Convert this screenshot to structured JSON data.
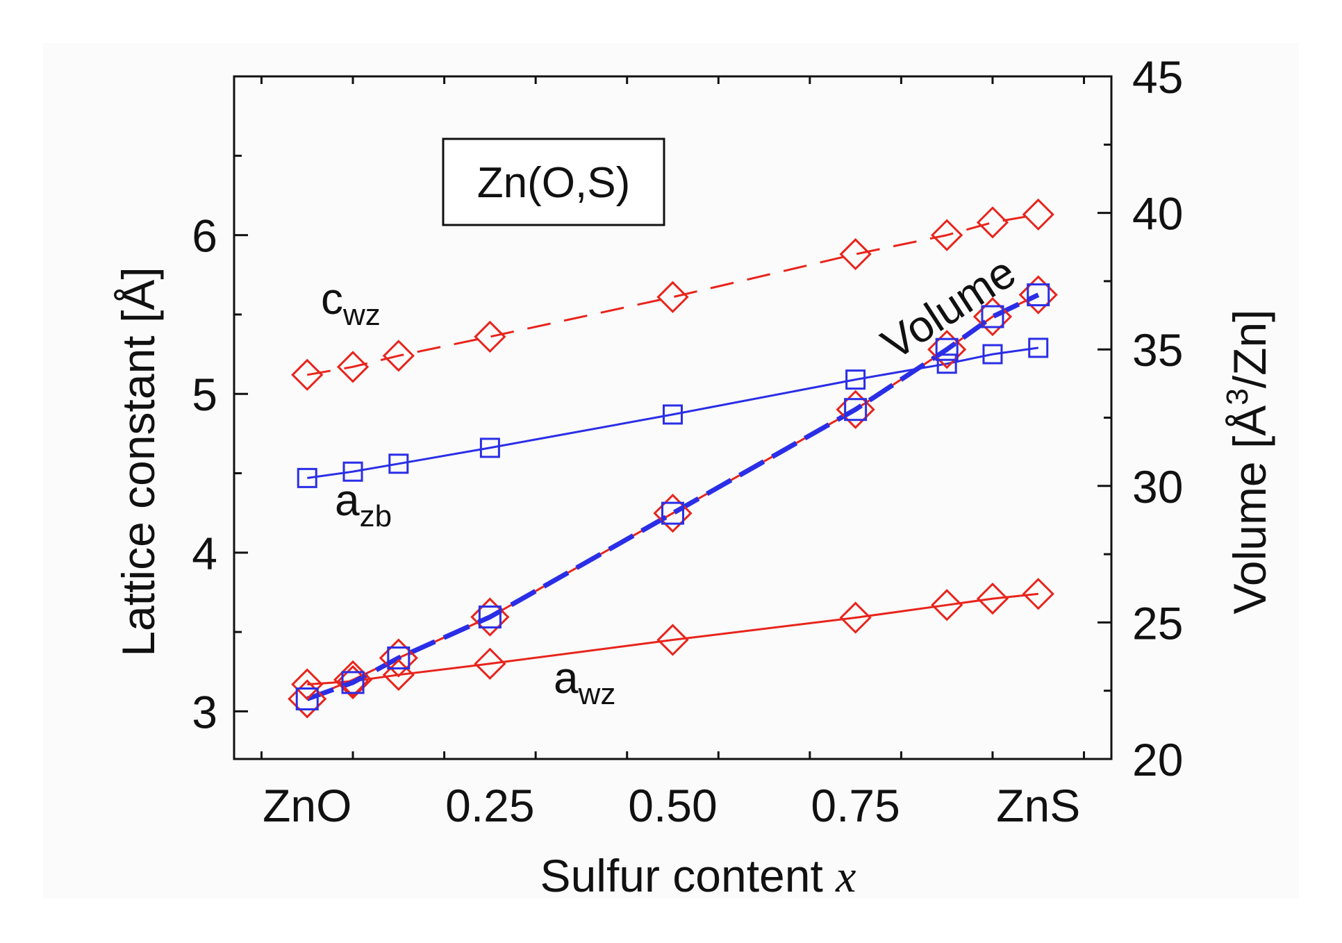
{
  "chart_data": {
    "type": "line",
    "title": "Zn(O,S)",
    "xlabel": "Sulfur content",
    "xlabel_var": "x",
    "ylabel": "Lattice constant [Å]",
    "y2label_prefix": "Volume [Å",
    "y2label_sup": "3",
    "y2label_suffix": "/Zn]",
    "xlim": [
      -0.1,
      1.1
    ],
    "ylim": [
      2.7,
      7.0
    ],
    "y2lim": [
      20,
      45
    ],
    "x_ticks": [
      {
        "value": 0,
        "label": "ZnO"
      },
      {
        "value": 0.25,
        "label": "0.25"
      },
      {
        "value": 0.5,
        "label": "0.50"
      },
      {
        "value": 0.75,
        "label": "0.75"
      },
      {
        "value": 1,
        "label": "ZnS"
      }
    ],
    "y_ticks": [
      {
        "value": 3,
        "label": "3"
      },
      {
        "value": 4,
        "label": "4"
      },
      {
        "value": 5,
        "label": "5"
      },
      {
        "value": 6,
        "label": "6"
      }
    ],
    "y2_ticks": [
      {
        "value": 20,
        "label": "20"
      },
      {
        "value": 25,
        "label": "25"
      },
      {
        "value": 30,
        "label": "30"
      },
      {
        "value": 35,
        "label": "35"
      },
      {
        "value": 40,
        "label": "40"
      },
      {
        "value": 45,
        "label": "45"
      }
    ],
    "x": [
      0,
      0.0625,
      0.125,
      0.25,
      0.5,
      0.75,
      0.875,
      0.9375,
      1
    ],
    "series": [
      {
        "name": "c_wz",
        "label_main": "c",
        "label_sub": "wz",
        "axis": "left",
        "color": "#e8241c",
        "marker": "diamond",
        "line": "dashed",
        "values": [
          5.12,
          5.17,
          5.24,
          5.36,
          5.61,
          5.88,
          6.0,
          6.08,
          6.13
        ]
      },
      {
        "name": "a_zb",
        "label_main": "a",
        "label_sub": "zb",
        "axis": "left",
        "color": "#2a2ee6",
        "marker": "square",
        "line": "solid",
        "values": [
          4.47,
          4.51,
          4.56,
          4.66,
          4.87,
          5.09,
          5.19,
          5.25,
          5.29
        ]
      },
      {
        "name": "a_wz",
        "label_main": "a",
        "label_sub": "wz",
        "axis": "left",
        "color": "#e8241c",
        "marker": "diamond",
        "line": "solid",
        "values": [
          3.17,
          3.19,
          3.23,
          3.3,
          3.45,
          3.59,
          3.67,
          3.71,
          3.74
        ]
      },
      {
        "name": "Volume (zb)",
        "label_main": "Volume",
        "axis": "right",
        "color": "#2a2ee6",
        "marker": "square",
        "line": "dashed-thick",
        "values": [
          22.2,
          22.8,
          23.7,
          25.2,
          29.0,
          32.8,
          35.0,
          36.2,
          37.0
        ]
      },
      {
        "name": "Volume (wz)",
        "axis": "right",
        "color": "#e8241c",
        "marker": "diamond",
        "line": "solid",
        "values": [
          22.2,
          22.9,
          23.7,
          25.2,
          29.0,
          32.8,
          35.0,
          36.2,
          37.0
        ]
      }
    ]
  }
}
